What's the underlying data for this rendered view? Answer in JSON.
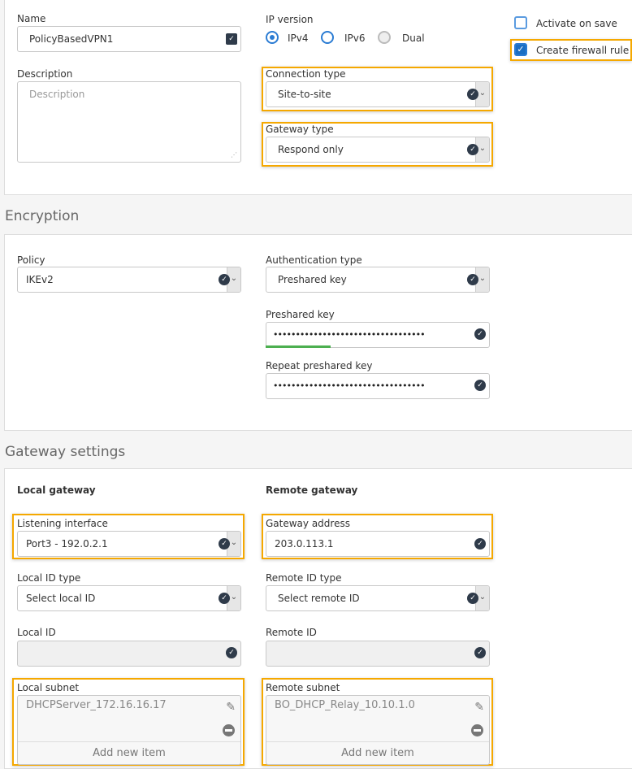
{
  "general": {
    "name_label": "Name",
    "name_value": "PolicyBasedVPN1",
    "description_label": "Description",
    "description_placeholder": "Description",
    "ip_version_label": "IP version",
    "ip_options": [
      "IPv4",
      "IPv6",
      "Dual"
    ],
    "ip_selected": "IPv4",
    "activate_on_save": {
      "label": "Activate on save",
      "checked": false
    },
    "create_firewall_rule": {
      "label": "Create firewall rule",
      "checked": true
    },
    "connection_type_label": "Connection type",
    "connection_type_value": "Site-to-site",
    "gateway_type_label": "Gateway type",
    "gateway_type_value": "Respond only"
  },
  "encryption": {
    "heading": "Encryption",
    "policy_label": "Policy",
    "policy_value": "IKEv2",
    "auth_type_label": "Authentication type",
    "auth_type_value": "Preshared key",
    "preshared_key_label": "Preshared key",
    "preshared_key_value": "••••••••••••••••••••••••••••••••••",
    "preshared_key_strength_percent": 29,
    "repeat_key_label": "Repeat preshared key",
    "repeat_key_value": "••••••••••••••••••••••••••••••••••"
  },
  "gateway": {
    "heading": "Gateway settings",
    "local_heading": "Local gateway",
    "remote_heading": "Remote gateway",
    "listening_interface_label": "Listening interface",
    "listening_interface_value": "Port3 - 192.0.2.1",
    "gateway_address_label": "Gateway address",
    "gateway_address_value": "203.0.113.1",
    "local_id_type_label": "Local ID type",
    "local_id_type_value": "Select local ID",
    "remote_id_type_label": "Remote ID type",
    "remote_id_type_value": "Select remote ID",
    "local_id_label": "Local ID",
    "local_id_value": "",
    "remote_id_label": "Remote ID",
    "remote_id_value": "",
    "local_subnet_label": "Local subnet",
    "local_subnet_items": [
      "DHCPServer_172.16.16.17"
    ],
    "remote_subnet_label": "Remote subnet",
    "remote_subnet_items": [
      "BO_DHCP_Relay_10.10.1.0"
    ],
    "add_new_item": "Add new item"
  },
  "colors": {
    "highlight": "#f5a800",
    "accent": "#2b7cd3",
    "strength": "#4caf50"
  }
}
